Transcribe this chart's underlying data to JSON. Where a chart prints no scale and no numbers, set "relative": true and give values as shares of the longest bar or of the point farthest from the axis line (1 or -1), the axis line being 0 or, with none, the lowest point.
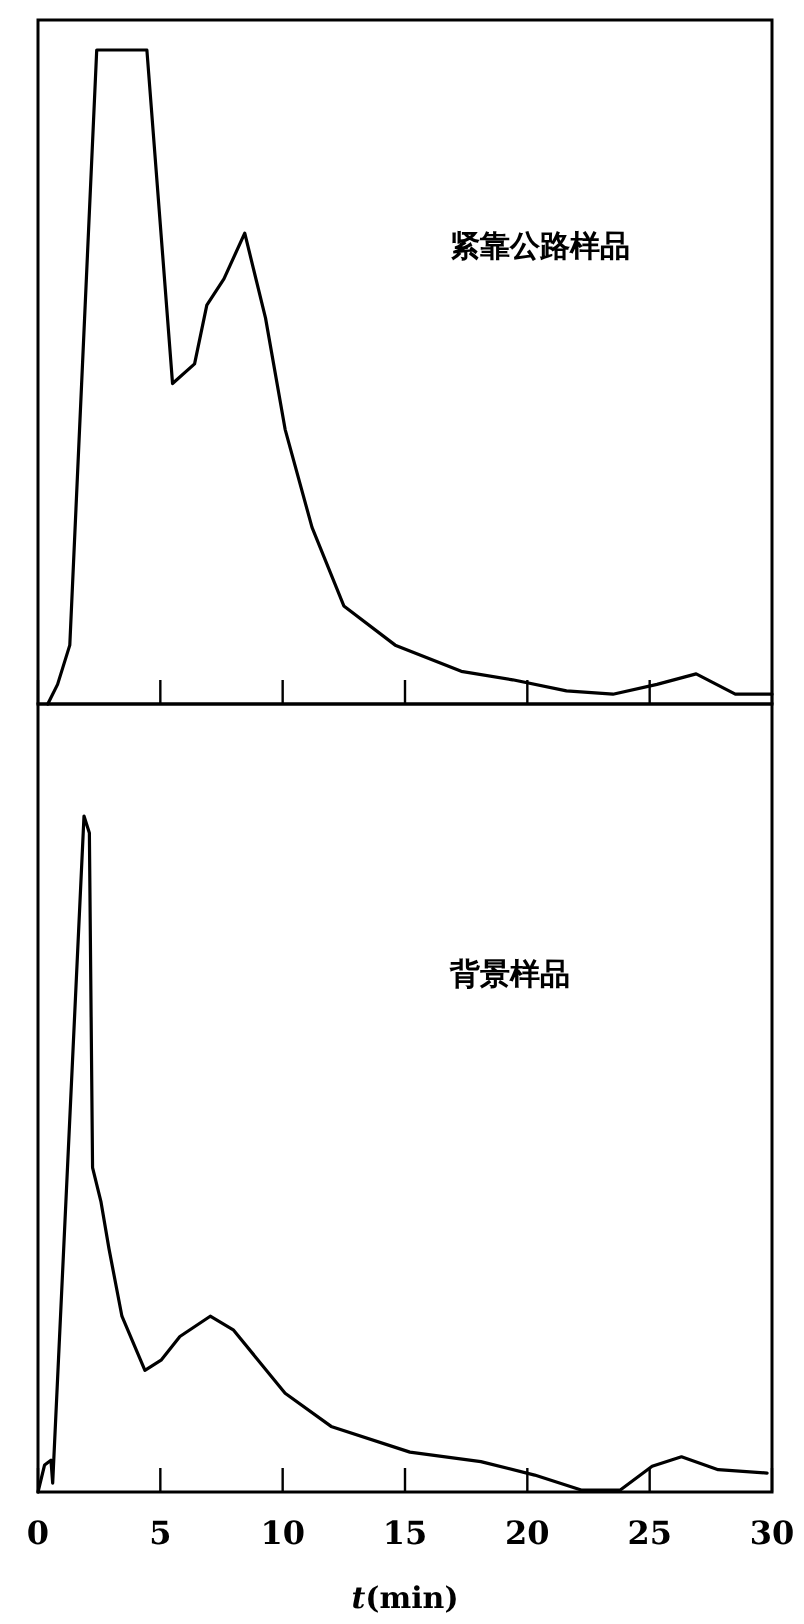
{
  "chart_data": [
    {
      "type": "line",
      "relative": true,
      "xlim": [
        0,
        30
      ],
      "xticks": [
        0,
        5,
        10,
        15,
        20,
        25,
        30
      ],
      "tick_labels": false,
      "marker": "none",
      "line_style": "solid",
      "annotations": [
        "紧靠公路样品"
      ],
      "series": [
        {
          "color": "#000000",
          "x": [
            0.4,
            0.8,
            1.3,
            2.4,
            4.45,
            5.5,
            6.4,
            6.9,
            7.6,
            8.45,
            9.3,
            10.1,
            11.2,
            12.5,
            14.6,
            17.3,
            19.4,
            21.6,
            23.5,
            25.3,
            26.9,
            28.5,
            30
          ],
          "values": [
            0,
            0.03,
            0.09,
            1,
            1,
            0.49,
            0.52,
            0.61,
            0.65,
            0.72,
            0.59,
            0.42,
            0.27,
            0.15,
            0.09,
            0.05,
            0.037,
            0.02,
            0.015,
            0.03,
            0.046,
            0.015,
            0.015
          ]
        }
      ]
    },
    {
      "type": "line",
      "relative": true,
      "xlim": [
        0,
        30
      ],
      "xticks": [
        0,
        5,
        10,
        15,
        20,
        25,
        30
      ],
      "xlabel": "*t*(min)",
      "marker": "none",
      "line_style": "solid",
      "annotations": [
        "背景样品"
      ],
      "series": [
        {
          "color": "#000000",
          "x": [
            0,
            0.27,
            0.53,
            0.6,
            1.88,
            2.1,
            2.23,
            2.57,
            2.9,
            3.43,
            4.37,
            5.03,
            5.8,
            7.04,
            7.98,
            10.1,
            11.98,
            15.2,
            18.1,
            20.3,
            22.2,
            23.8,
            25.1,
            26.3,
            27.8,
            29.8
          ],
          "values": [
            0,
            0.04,
            0.047,
            0.013,
            1,
            0.975,
            0.48,
            0.43,
            0.36,
            0.26,
            0.18,
            0.195,
            0.23,
            0.26,
            0.24,
            0.146,
            0.097,
            0.059,
            0.045,
            0.025,
            0.003,
            0.003,
            0.038,
            0.052,
            0.033,
            0.028
          ]
        }
      ]
    }
  ]
}
